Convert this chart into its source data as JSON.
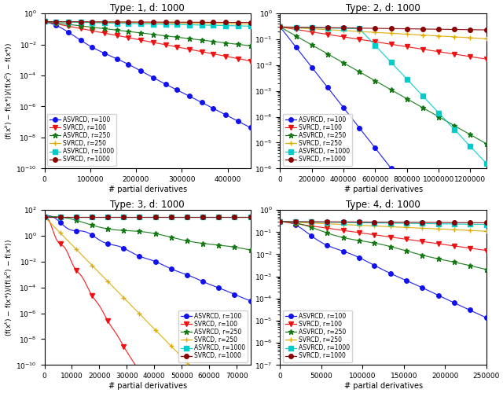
{
  "ylabel": "(f(x^k) - f(x*))/(f(x^0) - f(x*))",
  "xlabel": "# partial derivatives",
  "subplots": [
    {
      "title": "Type: 1, d: 1000",
      "xlim": 450000,
      "ylim": [
        1e-10,
        1.0
      ],
      "legend_loc": "lower left",
      "legend_bbox": null
    },
    {
      "title": "Type: 2, d: 1000",
      "xlim": 1300000,
      "ylim": [
        1e-06,
        1.0
      ],
      "legend_loc": "lower left",
      "legend_bbox": null
    },
    {
      "title": "Type: 3, d: 1000",
      "xlim": 75000,
      "ylim": [
        1e-10,
        100
      ],
      "legend_loc": "lower right",
      "legend_bbox": null
    },
    {
      "title": "Type: 4, d: 1000",
      "xlim": 250000,
      "ylim": [
        1e-07,
        1.0
      ],
      "legend_loc": "lower left",
      "legend_bbox": null
    }
  ],
  "series_meta": [
    {
      "label": "ASVRCD, r=100",
      "color": "#1111ee",
      "marker": "o",
      "ms": 4
    },
    {
      "label": "SVRCD, r=100",
      "color": "#ee1111",
      "marker": "v",
      "ms": 4
    },
    {
      "label": "ASVRCD, r=250",
      "color": "#117711",
      "marker": "*",
      "ms": 5
    },
    {
      "label": "SVRCD, r=250",
      "color": "#ddaa00",
      "marker": "+",
      "ms": 5
    },
    {
      "label": "ASVRCD, r=1000",
      "color": "#00cccc",
      "marker": "s",
      "ms": 4
    },
    {
      "label": "SVRCD, r=1000",
      "color": "#880000",
      "marker": "o",
      "ms": 4
    }
  ]
}
